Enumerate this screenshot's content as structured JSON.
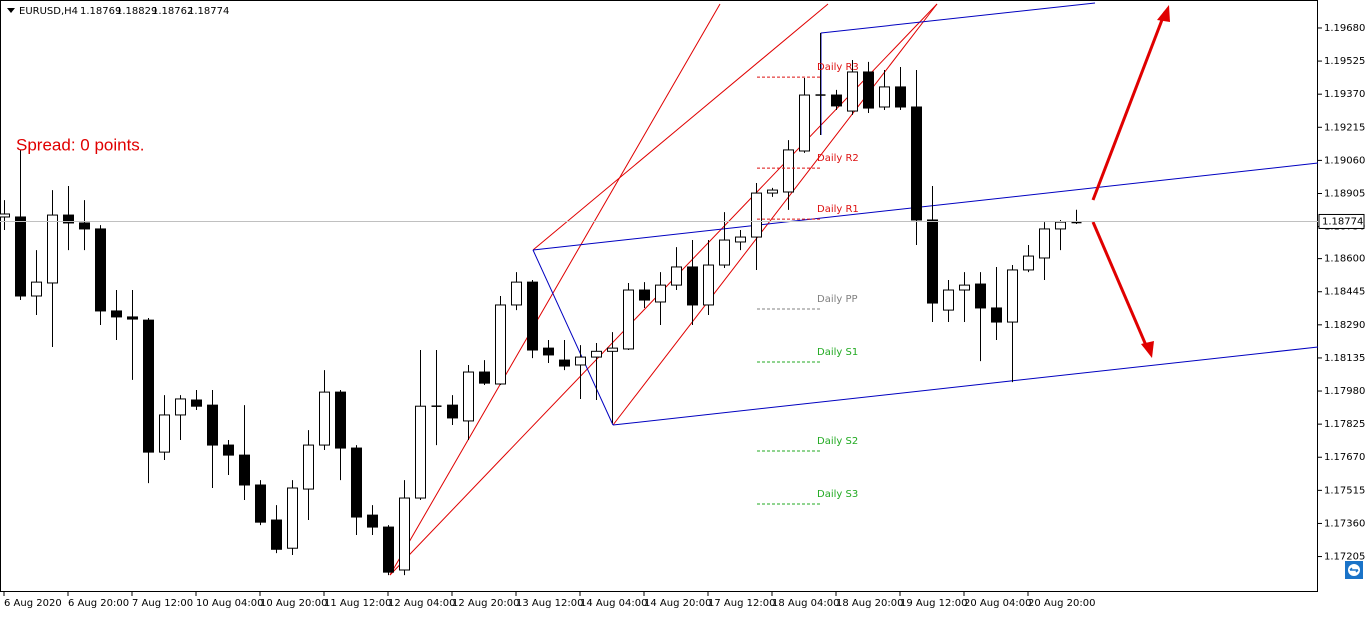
{
  "chart_data": {
    "type": "candlestick",
    "symbol": "EURUSD,H4",
    "annotation": "Spread: 0 points.",
    "up_color": "#ffffff",
    "down_color": "#000000",
    "categories": [
      "6 Aug 2020",
      null,
      null,
      null,
      "6 Aug 20:00",
      null,
      null,
      null,
      "7 Aug 12:00",
      null,
      null,
      null,
      "10 Aug 04:00",
      null,
      null,
      null,
      "10 Aug 20:00",
      null,
      null,
      null,
      "11 Aug 12:00",
      null,
      null,
      null,
      "12 Aug 04:00",
      null,
      null,
      null,
      "12 Aug 20:00",
      null,
      null,
      null,
      "13 Aug 12:00",
      null,
      null,
      null,
      "14 Aug 04:00",
      null,
      null,
      null,
      "14 Aug 20:00",
      null,
      null,
      null,
      "17 Aug 12:00",
      null,
      null,
      null,
      "18 Aug 04:00",
      null,
      null,
      null,
      "18 Aug 20:00",
      null,
      null,
      null,
      "19 Aug 12:00",
      null,
      null,
      null,
      "20 Aug 04:00",
      null,
      null,
      null,
      "20 Aug 20:00",
      null,
      null,
      null
    ],
    "open": [
      1.18795,
      1.18795,
      1.18425,
      1.18486,
      1.18804,
      1.18767,
      1.18739,
      1.18355,
      1.18327,
      1.18312,
      1.17694,
      1.17868,
      1.17938,
      1.17914,
      1.17727,
      1.1768,
      1.1754,
      1.17376,
      1.17244,
      1.17521,
      1.17727,
      1.17975,
      1.17713,
      1.17399,
      1.17343,
      1.17142,
      1.17479,
      1.17909,
      1.17914,
      1.1784,
      1.18069,
      1.18013,
      1.18383,
      1.1849,
      1.18181,
      1.18125,
      1.18102,
      1.18139,
      1.18166,
      1.18177,
      1.18453,
      1.18397,
      1.18476,
      1.18561,
      1.18383,
      1.1857,
      1.18678,
      1.18701,
      1.18907,
      1.18912,
      1.19104,
      1.19366,
      1.19366,
      1.19291,
      1.19474,
      1.1931,
      1.19404,
      1.1931,
      1.18781,
      1.18359,
      1.18453,
      1.18481,
      1.18369,
      1.18303,
      1.18547,
      1.18603,
      1.18739,
      1.18769
    ],
    "high": [
      1.18874,
      1.19109,
      1.1864,
      1.18921,
      1.1894,
      1.18874,
      1.18757,
      1.18453,
      1.18453,
      1.18322,
      1.17961,
      1.17961,
      1.17985,
      1.17985,
      1.17751,
      1.17914,
      1.17563,
      1.17446,
      1.17563,
      1.17797,
      1.18078,
      1.17985,
      1.17727,
      1.17446,
      1.17352,
      1.17563,
      1.18172,
      1.18172,
      1.17961,
      1.18102,
      1.18125,
      1.18425,
      1.18537,
      1.185,
      1.18219,
      1.18219,
      1.18195,
      1.18205,
      1.18256,
      1.18486,
      1.1849,
      1.18537,
      1.18654,
      1.18687,
      1.18687,
      1.18818,
      1.18734,
      1.18954,
      1.18931,
      1.19155,
      1.19446,
      1.19657,
      1.1939,
      1.1953,
      1.19521,
      1.19483,
      1.19497,
      1.19483,
      1.1894,
      1.185,
      1.18537,
      1.18537,
      1.18561,
      1.1857,
      1.18664,
      1.18771,
      1.18781,
      1.18829
    ],
    "low": [
      1.18734,
      1.18406,
      1.18336,
      1.18186,
      1.1864,
      1.1864,
      1.18289,
      1.18219,
      1.18032,
      1.17549,
      1.17657,
      1.17751,
      1.17891,
      1.17526,
      1.17587,
      1.1747,
      1.17352,
      1.17221,
      1.17212,
      1.17376,
      1.17704,
      1.17563,
      1.17306,
      1.17306,
      1.17118,
      1.17118,
      1.1747,
      1.17727,
      1.17821,
      1.17751,
      1.18008,
      1.18008,
      1.18359,
      1.18134,
      1.18111,
      1.18078,
      1.17943,
      1.17938,
      1.1783,
      1.18172,
      1.18369,
      1.18289,
      1.18453,
      1.18289,
      1.18336,
      1.18556,
      1.1864,
      1.18547,
      1.18889,
      1.18828,
      1.19095,
      1.19179,
      1.19296,
      1.19273,
      1.19282,
      1.19296,
      1.19296,
      1.18664,
      1.18303,
      1.18303,
      1.18303,
      1.1812,
      1.18219,
      1.18022,
      1.18537,
      1.185,
      1.1864,
      1.18762
    ],
    "close": [
      1.18809,
      1.18425,
      1.1849,
      1.18804,
      1.18767,
      1.18739,
      1.18355,
      1.18327,
      1.18317,
      1.17694,
      1.17868,
      1.17943,
      1.17909,
      1.17727,
      1.1768,
      1.1754,
      1.17366,
      1.17239,
      1.17526,
      1.17727,
      1.17975,
      1.17713,
      1.1739,
      1.17343,
      1.17132,
      1.17479,
      1.17909,
      1.17914,
      1.17854,
      1.18069,
      1.18017,
      1.18383,
      1.1849,
      1.18172,
      1.18149,
      1.18097,
      1.18139,
      1.18166,
      1.18181,
      1.18453,
      1.18406,
      1.18476,
      1.18561,
      1.18383,
      1.1857,
      1.18687,
      1.18701,
      1.18907,
      1.18921,
      1.19109,
      1.19366,
      1.19361,
      1.19315,
      1.19474,
      1.19305,
      1.19404,
      1.1931,
      1.18781,
      1.18392,
      1.18453,
      1.18476,
      1.18369,
      1.18303,
      1.18547,
      1.18612,
      1.18739,
      1.18771,
      1.18774
    ],
    "ylim": [
      1.17039,
      1.19811
    ],
    "yticks": [
      {
        "value": 1.1968,
        "label": "1.19680"
      },
      1.19525,
      {
        "value": 1.1937,
        "label": "1.19370"
      },
      1.19215,
      {
        "value": 1.1906,
        "label": "1.19060"
      },
      1.18905,
      {
        "value": 1.1875,
        "label": "1.18750"
      },
      {
        "value": 1.186,
        "label": "1.18600"
      },
      1.18445,
      {
        "value": 1.1829,
        "label": "1.18290"
      },
      1.18135,
      {
        "value": 1.1798,
        "label": "1.17980"
      },
      1.17825,
      {
        "value": 1.1767,
        "label": "1.17670"
      },
      1.17515,
      {
        "value": 1.1736,
        "label": "1.17360"
      },
      1.17205
    ],
    "pivots": [
      {
        "name": "Daily R3",
        "value": 1.1945,
        "color": "#dd1111"
      },
      {
        "name": "Daily R2",
        "value": 1.19024,
        "color": "#dd1111"
      },
      {
        "name": "Daily R1",
        "value": 1.18785,
        "color": "#dd1111"
      },
      {
        "name": "Daily PP",
        "value": 1.18364,
        "color": "#808080"
      },
      {
        "name": "Daily S1",
        "value": 1.18116,
        "color": "#22aa22"
      },
      {
        "name": "Daily S2",
        "value": 1.17699,
        "color": "#22aa22"
      },
      {
        "name": "Daily S3",
        "value": 1.17451,
        "color": "#22aa22"
      }
    ]
  }
}
